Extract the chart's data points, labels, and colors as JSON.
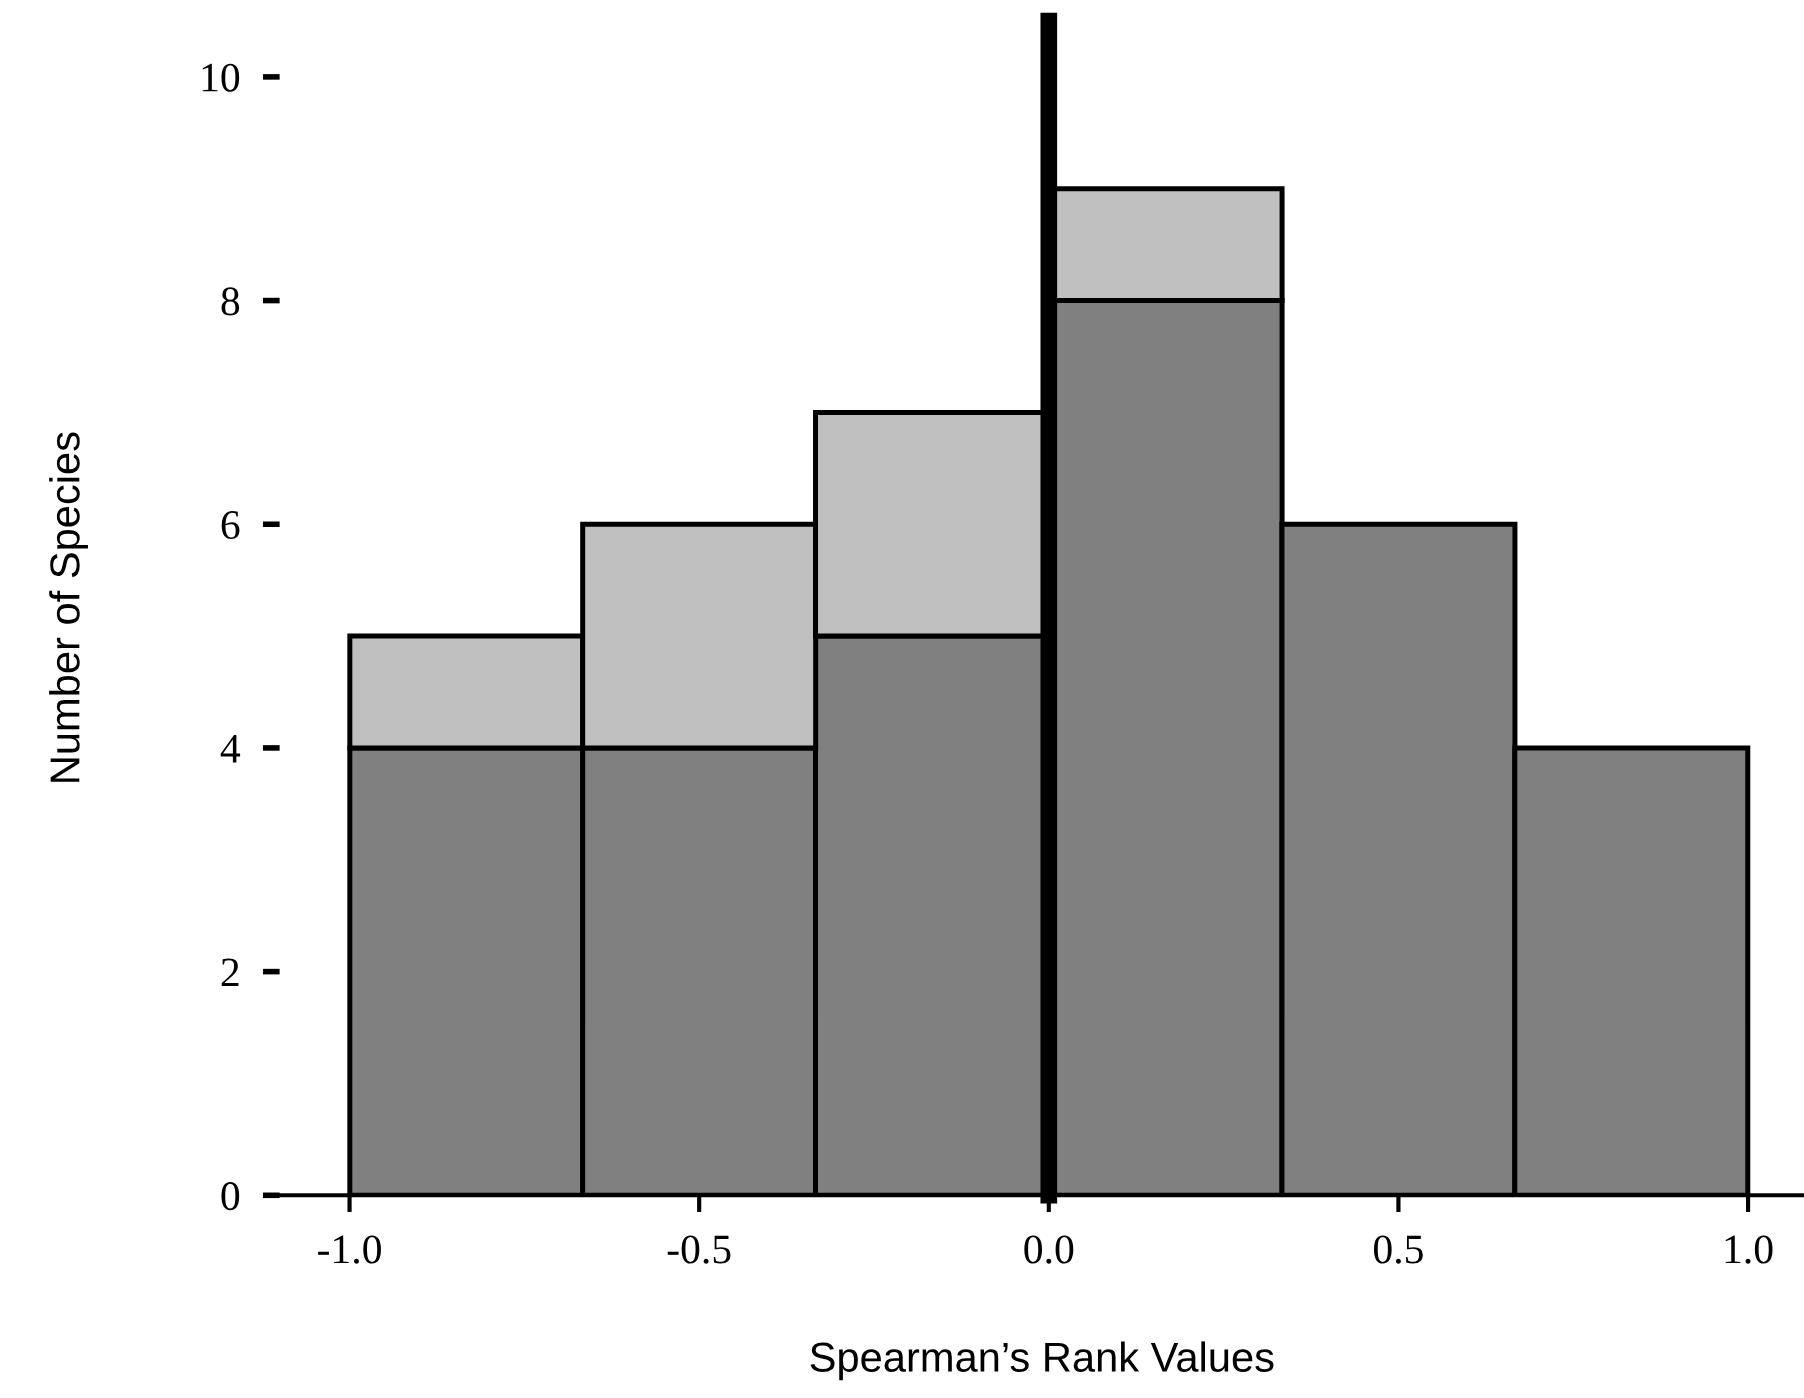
{
  "chart_data": {
    "type": "bar",
    "stacked": true,
    "xlabel": "Spearman’s Rank Values",
    "ylabel": "Number of Species",
    "x": [
      -0.833,
      -0.5,
      -0.167,
      0.167,
      0.5,
      0.833
    ],
    "series": [
      {
        "color": "#808080",
        "values": [
          4,
          4,
          5,
          8,
          6,
          4
        ]
      },
      {
        "color": "#c0c0c0",
        "values": [
          1,
          2,
          2,
          1,
          0,
          0
        ]
      }
    ],
    "xlim": [
      -1.1,
      1.08
    ],
    "xticks": [
      {
        "value": -1.0,
        "label": "-1.0"
      },
      {
        "value": -0.5,
        "label": "-0.5"
      },
      {
        "value": 0.0,
        "label": "0.0"
      },
      {
        "value": 0.5,
        "label": "0.5"
      },
      {
        "value": 1.0,
        "label": "1.0"
      }
    ],
    "ylim": [
      0,
      10.5
    ],
    "yticks": [
      0,
      2,
      4,
      6,
      8,
      10
    ],
    "ref_lines": [
      {
        "axis": "x",
        "value": 0.0,
        "color": "#000000"
      }
    ],
    "grid": false,
    "legend": false
  }
}
